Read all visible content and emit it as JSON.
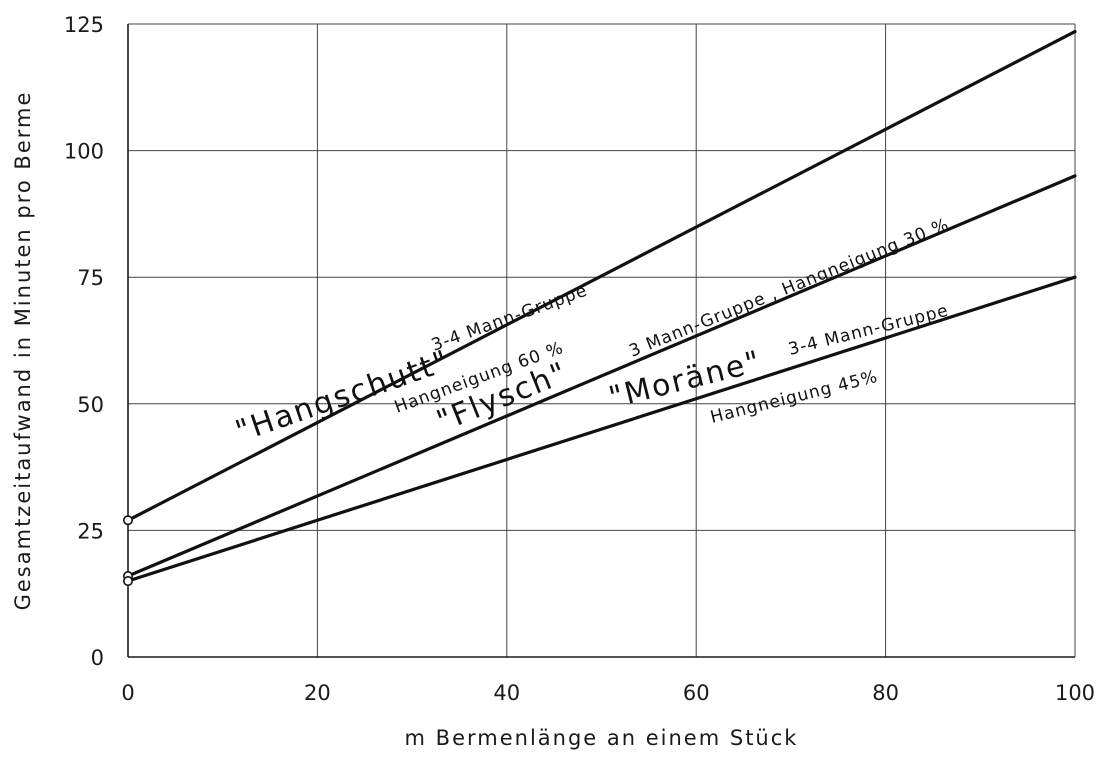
{
  "chart_data": {
    "type": "line",
    "title": "",
    "xlabel": "m  Bermenlänge an einem Stück",
    "ylabel": "Gesamtzeitaufwand in Minuten pro Berme",
    "xlim": [
      0,
      100
    ],
    "ylim": [
      0,
      125
    ],
    "xticks": [
      0,
      20,
      40,
      60,
      80,
      100
    ],
    "yticks": [
      0,
      25,
      50,
      75,
      100,
      125
    ],
    "grid": true,
    "legend": "none",
    "series": [
      {
        "name": "\"Hangschutt\"",
        "x": [
          0,
          100
        ],
        "y": [
          27,
          123.5
        ],
        "annotations": [
          "3-4 Mann-Gruppe",
          "Hangneigung 60 %"
        ]
      },
      {
        "name": "\"Flysch\"",
        "x": [
          0,
          100
        ],
        "y": [
          16,
          95
        ],
        "annotations": [
          "3 Mann-Gruppe , Hangneigung 30 %"
        ]
      },
      {
        "name": "\"Moräne\"",
        "x": [
          0,
          100
        ],
        "y": [
          15,
          75
        ],
        "annotations": [
          "3-4 Mann-Gruppe",
          "Hangneigung 45%"
        ]
      }
    ]
  }
}
